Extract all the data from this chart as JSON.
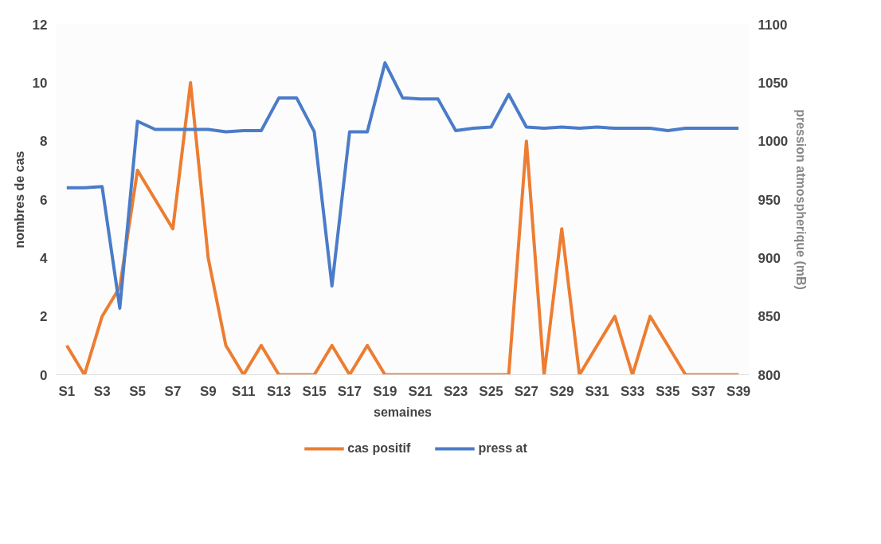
{
  "chart_data": {
    "type": "line",
    "xlabel": "semaines",
    "ylabel": "nombres de cas",
    "y2label": "pression atmospherique (mB)",
    "categories": [
      "S1",
      null,
      "S3",
      null,
      "S5",
      null,
      "S7",
      null,
      "S9",
      null,
      "S11",
      null,
      "S13",
      null,
      "S15",
      null,
      "S17",
      null,
      "S19",
      null,
      "S21",
      null,
      "S23",
      null,
      "S25",
      null,
      "S27",
      null,
      "S29",
      null,
      "S31",
      null,
      "S33",
      null,
      "S35",
      null,
      "S37",
      null,
      "S39"
    ],
    "series": [
      {
        "name": "cas positif",
        "color": "#ed7d31",
        "values": [
          1,
          0,
          2,
          3,
          7,
          6,
          5,
          10,
          4,
          1,
          0,
          1,
          0,
          0,
          0,
          1,
          0,
          1,
          0,
          0,
          0,
          0,
          0,
          0,
          0,
          0,
          8,
          0,
          5,
          0,
          1,
          2,
          0,
          2,
          1,
          0,
          0,
          0,
          0
        ]
      },
      {
        "name": "press at",
        "color": "#4a7cc8",
        "axis": "y2",
        "values": [
          960,
          960,
          961,
          857,
          1017,
          1010,
          1010,
          1010,
          1010,
          1008,
          1009,
          1009,
          1037,
          1037,
          1008,
          876,
          1008,
          1008,
          1067,
          1037,
          1036,
          1036,
          1009,
          1011,
          1012,
          1040,
          1012,
          1011,
          1012,
          1011,
          1012,
          1011,
          1011,
          1011,
          1009,
          1011,
          1011,
          1011,
          1011
        ]
      }
    ],
    "ylim": [
      0,
      12
    ],
    "yticks": [
      0,
      2,
      4,
      6,
      8,
      10,
      12
    ],
    "y2lim": [
      800,
      1100
    ],
    "y2ticks": [
      800,
      850,
      900,
      950,
      1000,
      1050,
      1100
    ],
    "grid": false,
    "legend": "bottom",
    "line_style": "solid",
    "marker": "none"
  }
}
